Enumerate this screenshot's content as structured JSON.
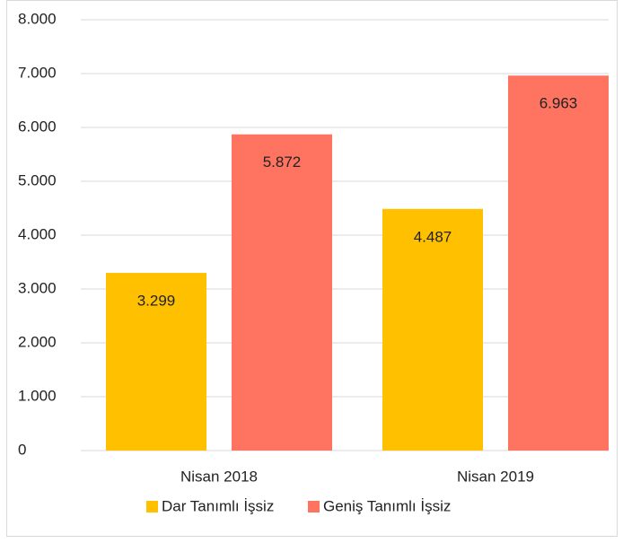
{
  "chart_data": {
    "type": "bar",
    "categories": [
      "Nisan 2018",
      "Nisan 2019"
    ],
    "series": [
      {
        "name": "Dar Tanımlı İşsiz",
        "color": "#ffc000",
        "values": [
          3299,
          4487
        ],
        "value_labels": [
          "3.299",
          "4.487"
        ]
      },
      {
        "name": "Geniş Tanımlı İşsiz",
        "color": "#ff7461",
        "values": [
          5872,
          6963
        ],
        "value_labels": [
          "5.872",
          "6.963"
        ]
      }
    ],
    "ylim": [
      0,
      8000
    ],
    "yticks": [
      0,
      {
        "value": 1000,
        "label": "1.000"
      },
      {
        "value": 2000,
        "label": "2.000"
      },
      {
        "value": 3000,
        "label": "3.000"
      },
      {
        "value": 4000,
        "label": "4.000"
      },
      {
        "value": 5000,
        "label": "5.000"
      },
      {
        "value": 6000,
        "label": "6.000"
      },
      {
        "value": 7000,
        "label": "7.000"
      },
      {
        "value": 8000,
        "label": "8.000"
      }
    ],
    "grid": true,
    "legend": "bottom"
  }
}
